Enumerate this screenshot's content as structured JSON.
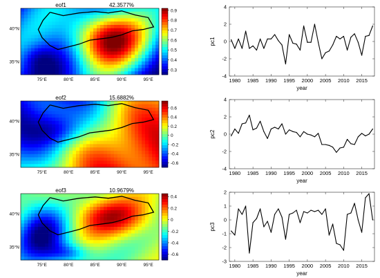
{
  "maps": [
    {
      "title": "eof1",
      "variance": "42.3577%",
      "lat_ticks": [
        "40°N",
        "35°N"
      ],
      "lon_ticks": [
        "75°E",
        "80°E",
        "85°E",
        "90°E",
        "95°E"
      ],
      "colorbar_ticks": [
        "0.9",
        "0.8",
        "0.7",
        "0.6",
        "0.5",
        "0.4",
        "0.3"
      ],
      "colorbar_range": [
        0.25,
        0.92
      ]
    },
    {
      "title": "eof2",
      "variance": "15.6882%",
      "lat_ticks": [
        "40°N",
        "35°N"
      ],
      "lon_ticks": [
        "75°E",
        "80°E",
        "85°E",
        "90°E",
        "95°E"
      ],
      "colorbar_ticks": [
        "0.6",
        "0.4",
        "0.2",
        "0",
        "-0.2",
        "-0.4",
        "-0.6"
      ],
      "colorbar_range": [
        -0.7,
        0.75
      ]
    },
    {
      "title": "eof3",
      "variance": "10.9679%",
      "lat_ticks": [
        "40°N",
        "35°N"
      ],
      "lon_ticks": [
        "75°E",
        "80°E",
        "85°E",
        "90°E",
        "95°E"
      ],
      "colorbar_ticks": [
        "0.4",
        "0.2",
        "0",
        "-0.2",
        "-0.4",
        "-0.6"
      ],
      "colorbar_range": [
        -0.7,
        0.45
      ]
    }
  ],
  "chart_data": [
    {
      "type": "line",
      "ylabel": "pc1",
      "xlabel": "year",
      "x": [
        1979,
        1980,
        1981,
        1982,
        1983,
        1984,
        1985,
        1986,
        1987,
        1988,
        1989,
        1990,
        1991,
        1992,
        1993,
        1994,
        1995,
        1996,
        1997,
        1998,
        1999,
        2000,
        2001,
        2002,
        2003,
        2004,
        2005,
        2006,
        2007,
        2008,
        2009,
        2010,
        2011,
        2012,
        2013,
        2014,
        2015,
        2016,
        2017,
        2018
      ],
      "y": [
        0.2,
        -0.8,
        0.3,
        -0.8,
        1.2,
        -0.8,
        -0.5,
        -1.0,
        0.3,
        -0.8,
        0.3,
        0.3,
        0.8,
        0.1,
        -0.4,
        -2.6,
        0.8,
        -0.2,
        -0.3,
        -1.0,
        1.8,
        -0.1,
        -0.1,
        2.0,
        -0.1,
        -2.0,
        -1.3,
        -1.1,
        -0.4,
        0.6,
        0.3,
        0.6,
        -1.0,
        0.5,
        0.9,
        -0.1,
        -1.6,
        0.6,
        0.7,
        1.8
      ],
      "xlim": [
        1978.5,
        2018.5
      ],
      "ylim": [
        -4,
        4
      ],
      "xticks": [
        "1980",
        "1985",
        "1990",
        "1995",
        "2000",
        "2005",
        "2010",
        "2015"
      ],
      "yticks": [
        "4",
        "2",
        "0",
        "-2",
        "-4"
      ]
    },
    {
      "type": "line",
      "ylabel": "pc2",
      "xlabel": "year",
      "x": [
        1979,
        1980,
        1981,
        1982,
        1983,
        1984,
        1985,
        1986,
        1987,
        1988,
        1989,
        1990,
        1991,
        1992,
        1993,
        1994,
        1995,
        1996,
        1997,
        1998,
        1999,
        2000,
        2001,
        2002,
        2003,
        2004,
        2005,
        2006,
        2007,
        2008,
        2009,
        2010,
        2011,
        2012,
        2013,
        2014,
        2015,
        2016,
        2017,
        2018
      ],
      "y": [
        -0.2,
        0.6,
        0.1,
        1.2,
        1.3,
        2.2,
        0.5,
        0.7,
        1.5,
        0.3,
        -0.5,
        0.6,
        0.8,
        0.6,
        1.2,
        0.0,
        0.5,
        0.3,
        0.2,
        -0.3,
        0.3,
        0.0,
        -0.1,
        -0.3,
        0.1,
        -1.2,
        -1.2,
        -1.3,
        -1.5,
        -2.1,
        -1.6,
        -1.5,
        -0.6,
        -1.1,
        -1.2,
        -0.3,
        0.1,
        -0.2,
        0.0,
        0.6
      ],
      "xlim": [
        1978.5,
        2018.5
      ],
      "ylim": [
        -4,
        4
      ],
      "xticks": [
        "1980",
        "1985",
        "1990",
        "1995",
        "2000",
        "2005",
        "2010",
        "2015"
      ],
      "yticks": [
        "4",
        "2",
        "0",
        "-2",
        "-4"
      ]
    },
    {
      "type": "line",
      "ylabel": "pc3",
      "xlabel": "year",
      "x": [
        1979,
        1980,
        1981,
        1982,
        1983,
        1984,
        1985,
        1986,
        1987,
        1988,
        1989,
        1990,
        1991,
        1992,
        1993,
        1994,
        1995,
        1996,
        1997,
        1998,
        1999,
        2000,
        2001,
        2002,
        2003,
        2004,
        2005,
        2006,
        2007,
        2008,
        2009,
        2010,
        2011,
        2012,
        2013,
        2014,
        2015,
        2016,
        2017,
        2018
      ],
      "y": [
        -0.8,
        -1.1,
        0.8,
        0.4,
        1.0,
        -2.4,
        -0.2,
        0.1,
        0.8,
        -0.5,
        -0.1,
        -0.9,
        0.4,
        0.8,
        0.2,
        -1.4,
        0.4,
        0.5,
        0.7,
        -0.2,
        0.6,
        0.5,
        0.7,
        0.6,
        0.7,
        0.4,
        0.8,
        -1.1,
        -0.3,
        -1.7,
        -1.8,
        -2.2,
        0.4,
        0.5,
        1.2,
        0.0,
        -0.9,
        1.6,
        1.9,
        0.0
      ],
      "xlim": [
        1978.5,
        2018.5
      ],
      "ylim": [
        -3,
        2
      ],
      "xticks": [
        "1980",
        "1985",
        "1990",
        "1995",
        "2000",
        "2005",
        "2010",
        "2015"
      ],
      "yticks": [
        "2",
        "1",
        "0",
        "-1",
        "-2",
        "-3"
      ]
    }
  ]
}
